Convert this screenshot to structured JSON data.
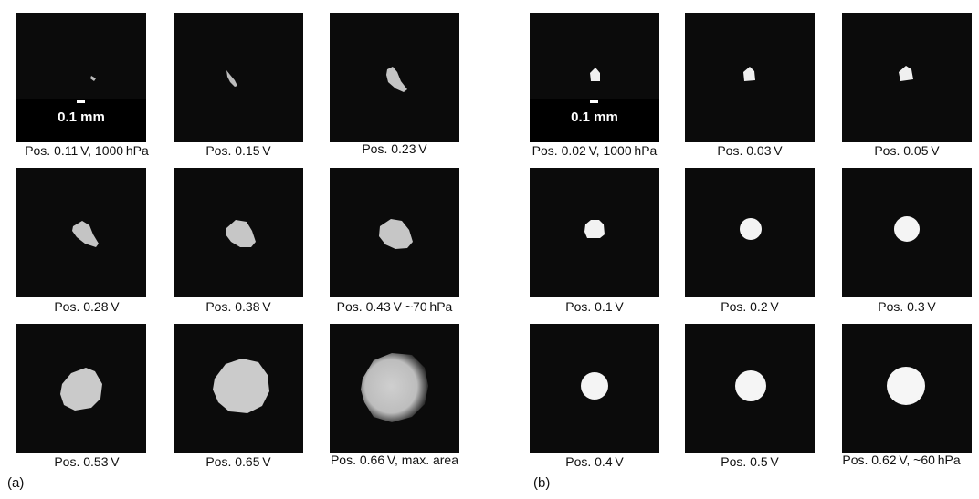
{
  "panel_a": {
    "label": "(a)",
    "scale_text": "0.1 mm",
    "captions": [
      "Pos. 0.11 V, 1000 hPa",
      "Pos. 0.15 V",
      "Pos. 0.23 V",
      "Pos. 0.28 V",
      "Pos. 0.38 V",
      "Pos. 0.43 V ~70 hPa",
      "Pos. 0.53 V",
      "Pos. 0.65 V",
      "Pos. 0.66 V, max. area"
    ]
  },
  "panel_b": {
    "label": "(b)",
    "scale_text": "0.1 mm",
    "captions": [
      "Pos. 0.02 V, 1000 hPa",
      "Pos. 0.03 V",
      "Pos. 0.05 V",
      "Pos. 0.1 V",
      "Pos. 0.2 V",
      "Pos. 0.3 V",
      "Pos. 0.4 V",
      "Pos. 0.5 V",
      "Pos. 0.62 V, ~60 hPa"
    ]
  },
  "colors": {
    "tile_bg": "#0b0b0b",
    "spot_a": "#c9c9c9",
    "spot_b": "#f4f4f4"
  }
}
